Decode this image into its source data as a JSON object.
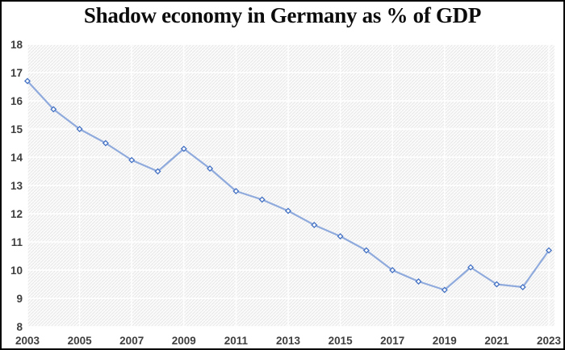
{
  "window": {
    "title": "Shadow economy in Germany as % of GDP"
  },
  "chart_data": {
    "type": "line",
    "title": "Shadow economy in Germany as % of GDP",
    "xlabel": "",
    "ylabel": "",
    "x": [
      2003,
      2004,
      2005,
      2006,
      2007,
      2008,
      2009,
      2010,
      2011,
      2012,
      2013,
      2014,
      2015,
      2016,
      2017,
      2018,
      2019,
      2020,
      2021,
      2022,
      2023
    ],
    "values": [
      16.7,
      15.7,
      15.0,
      14.5,
      13.9,
      13.5,
      14.3,
      13.6,
      12.8,
      12.5,
      12.1,
      11.6,
      11.2,
      10.7,
      10.0,
      9.6,
      9.3,
      10.1,
      9.5,
      9.4,
      10.7
    ],
    "ylim": [
      8,
      18
    ],
    "yticks": [
      8,
      9,
      10,
      11,
      12,
      13,
      14,
      15,
      16,
      17,
      18
    ],
    "xticks": [
      2003,
      2005,
      2007,
      2009,
      2011,
      2013,
      2015,
      2017,
      2019,
      2021,
      2023
    ],
    "grid": true,
    "legend": false,
    "marker": "diamond",
    "colors": {
      "line": "#8FAADC",
      "marker_stroke": "#4472C4",
      "marker_fill": "#FFFFFF",
      "gridline": "#FFFFFF",
      "plot_bg": "#FBFBFB",
      "hatch": "#E7E7E7",
      "tick_label": "#3F3F3F",
      "title": "#0C0C0C",
      "frame_border": "#000000"
    }
  }
}
